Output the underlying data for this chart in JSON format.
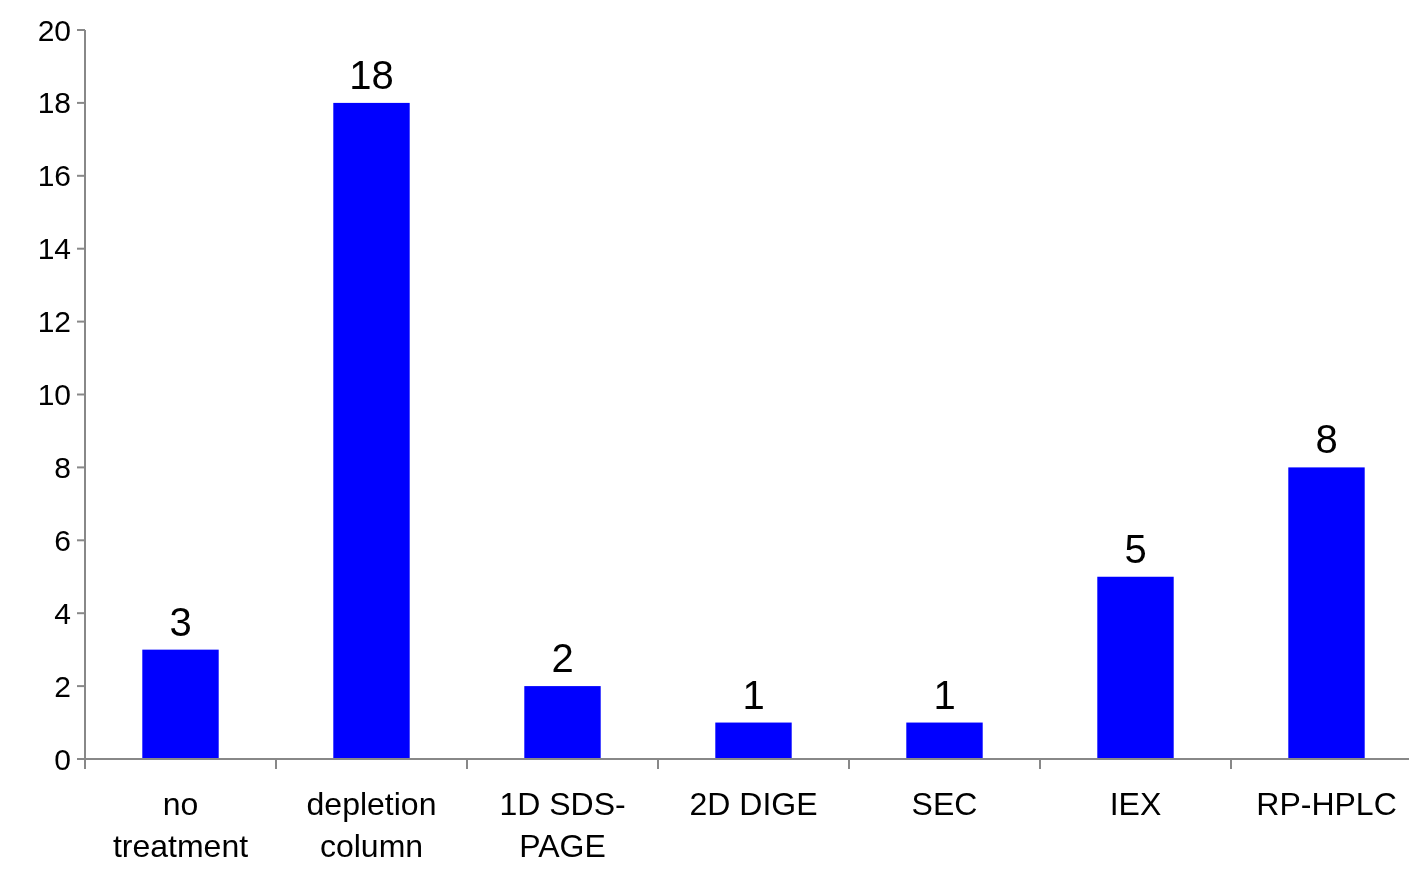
{
  "chart_data": {
    "type": "bar",
    "categories": [
      "no treatment",
      "depletion column",
      "1D SDS-PAGE",
      "2D DIGE",
      "SEC",
      "IEX",
      "RP-HPLC"
    ],
    "values": [
      3,
      18,
      2,
      1,
      1,
      5,
      8
    ],
    "color": "#0000ff",
    "ylim": [
      0,
      20
    ],
    "yticks": [
      0,
      2,
      4,
      6,
      8,
      10,
      12,
      14,
      16,
      18,
      20
    ],
    "data_labels": true
  }
}
